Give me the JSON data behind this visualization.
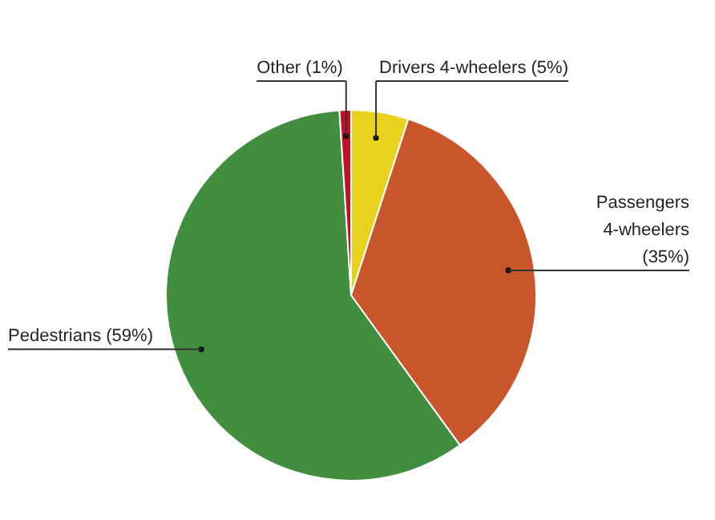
{
  "chart_data": {
    "type": "pie",
    "categories": [
      "Drivers 4-wheelers (5%)",
      "Passengers 4-wheelers (35%)",
      "Pedestrians (59%)",
      "Other (1%)"
    ],
    "values": [
      5,
      35,
      59,
      1
    ],
    "colors": [
      "#e8d21e",
      "#c8562a",
      "#418f3e",
      "#c0102a"
    ],
    "legend": false
  }
}
